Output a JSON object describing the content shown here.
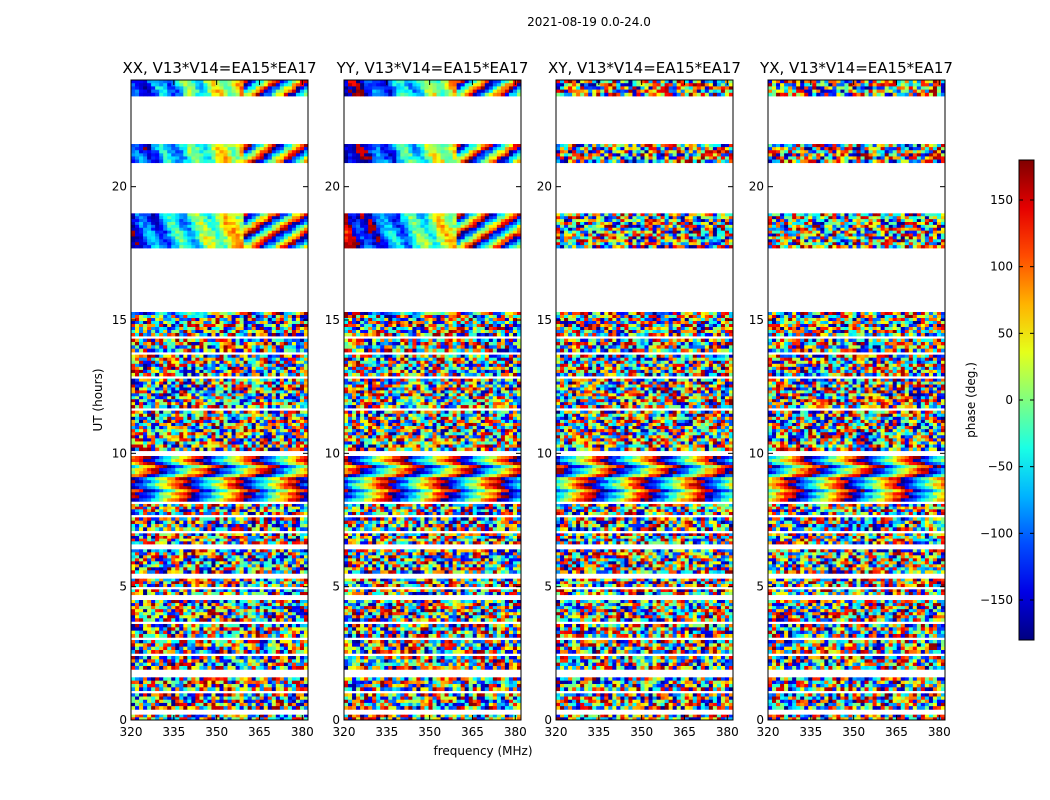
{
  "chart_data": {
    "type": "heatmap",
    "suptitle": "2021-08-19 0.0-24.0",
    "xlabel": "frequency (MHz)",
    "ylabel": "UT (hours)",
    "xlim": [
      320,
      382
    ],
    "ylim": [
      0,
      24
    ],
    "xticks": [
      320,
      335,
      350,
      365,
      380
    ],
    "yticks": [
      0,
      5,
      10,
      15,
      20
    ],
    "panels": [
      {
        "title": "XX, V13*V14=EA15*EA17",
        "pol": "XX"
      },
      {
        "title": "YY, V13*V14=EA15*EA17",
        "pol": "YY"
      },
      {
        "title": "XY, V13*V14=EA15*EA17",
        "pol": "XY"
      },
      {
        "title": "YX, V13*V14=EA15*EA17",
        "pol": "YX"
      }
    ],
    "data_blocks_ut_hours": [
      [
        0.0,
        0.2
      ],
      [
        0.4,
        1.0
      ],
      [
        1.1,
        1.6
      ],
      [
        1.9,
        2.4
      ],
      [
        2.5,
        3.0
      ],
      [
        3.1,
        3.6
      ],
      [
        3.7,
        4.5
      ],
      [
        4.7,
        4.9
      ],
      [
        5.0,
        5.3
      ],
      [
        5.5,
        6.4
      ],
      [
        6.6,
        7.0
      ],
      [
        7.1,
        7.6
      ],
      [
        7.7,
        8.1
      ],
      [
        8.2,
        9.9
      ],
      [
        10.1,
        11.6
      ],
      [
        11.7,
        12.8
      ],
      [
        12.9,
        13.7
      ],
      [
        13.8,
        14.3
      ],
      [
        14.4,
        15.3
      ],
      [
        17.7,
        19.0
      ],
      [
        20.9,
        21.6
      ],
      [
        23.4,
        24.0
      ]
    ],
    "colorbar": {
      "label": "phase (deg.)",
      "range": [
        -180,
        180
      ],
      "ticks": [
        -150,
        -100,
        -50,
        0,
        50,
        100,
        150
      ],
      "tick_labels": [
        "−150",
        "−100",
        "−50",
        "0",
        "50",
        "100",
        "150"
      ],
      "colormap": "jet"
    }
  }
}
